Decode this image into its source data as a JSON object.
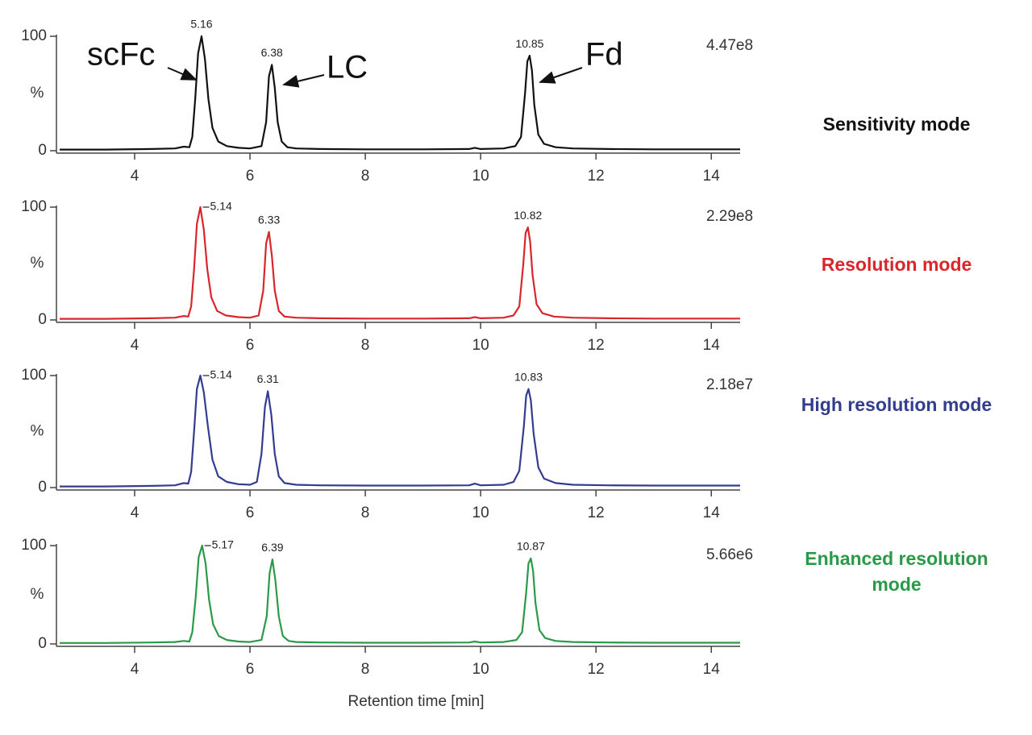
{
  "chart_data": [
    {
      "type": "line",
      "series": [
        {
          "name": "Sensitivity mode",
          "color": "#111111",
          "values": [
            1,
            1,
            1.5,
            2,
            3.5,
            3,
            12,
            45,
            85,
            100,
            80,
            45,
            20,
            8,
            4,
            2.5,
            2,
            4,
            25,
            65,
            75,
            55,
            25,
            8,
            3,
            2,
            1.5,
            1.2,
            1.2,
            1.5,
            2.5,
            1.5,
            2,
            4,
            12,
            50,
            78,
            83,
            70,
            40,
            14,
            6,
            3,
            2,
            1.5,
            1.2,
            1.2
          ]
        }
      ],
      "x": [
        2.7,
        3.5,
        4.3,
        4.7,
        4.85,
        4.95,
        5.0,
        5.05,
        5.1,
        5.16,
        5.22,
        5.28,
        5.35,
        5.45,
        5.6,
        5.8,
        6.0,
        6.2,
        6.28,
        6.33,
        6.38,
        6.43,
        6.48,
        6.55,
        6.65,
        6.8,
        7.2,
        8,
        9,
        9.8,
        9.9,
        10.0,
        10.4,
        10.6,
        10.7,
        10.77,
        10.81,
        10.85,
        10.89,
        10.93,
        11.0,
        11.1,
        11.3,
        11.6,
        12.2,
        13,
        14.5
      ],
      "xlim": [
        2.7,
        14.5
      ],
      "xticks": [
        4,
        6,
        8,
        10,
        12,
        14
      ],
      "ylim": [
        0,
        100
      ],
      "yticks": [
        0,
        100
      ],
      "ylabel": "%",
      "intensity": "4.47e8",
      "peak_labels": [
        {
          "x": 5.16,
          "y": 100
        },
        {
          "x": 6.38,
          "y": 75
        },
        {
          "x": 10.85,
          "y": 83
        }
      ],
      "peak_label_leader": false,
      "annotations": [
        "scFc",
        "LC",
        "Fd"
      ]
    },
    {
      "type": "line",
      "series": [
        {
          "name": "Resolution mode",
          "color": "#d9262c",
          "values": [
            1,
            1,
            1.5,
            2,
            3.5,
            3,
            12,
            45,
            85,
            100,
            80,
            45,
            20,
            8,
            4,
            2.5,
            2,
            4,
            26,
            68,
            78,
            57,
            26,
            8,
            3,
            2,
            1.5,
            1.2,
            1.2,
            1.5,
            2.5,
            1.5,
            2,
            4,
            12,
            50,
            77,
            82,
            69,
            40,
            14,
            6,
            3,
            2,
            1.5,
            1.2,
            1.2
          ]
        }
      ],
      "x": [
        2.7,
        3.5,
        4.3,
        4.7,
        4.85,
        4.93,
        4.98,
        5.03,
        5.08,
        5.14,
        5.2,
        5.26,
        5.33,
        5.43,
        5.58,
        5.8,
        6.0,
        6.15,
        6.23,
        6.28,
        6.33,
        6.38,
        6.43,
        6.5,
        6.6,
        6.8,
        7.2,
        8,
        9,
        9.8,
        9.9,
        10.0,
        10.4,
        10.57,
        10.67,
        10.74,
        10.78,
        10.82,
        10.86,
        10.9,
        10.97,
        11.07,
        11.27,
        11.6,
        12.2,
        13,
        14.5
      ],
      "xlim": [
        2.7,
        14.5
      ],
      "xticks": [
        4,
        6,
        8,
        10,
        12,
        14
      ],
      "ylim": [
        0,
        100
      ],
      "yticks": [
        0,
        100
      ],
      "ylabel": "%",
      "intensity": "2.29e8",
      "peak_labels": [
        {
          "x": 5.14,
          "y": 100
        },
        {
          "x": 6.33,
          "y": 78
        },
        {
          "x": 10.82,
          "y": 82
        }
      ],
      "peak_label_leader": true
    },
    {
      "type": "line",
      "series": [
        {
          "name": "High resolution mode",
          "color": "#333d8f",
          "values": [
            1,
            1,
            1.5,
            2,
            4,
            3.5,
            14,
            50,
            88,
            100,
            85,
            55,
            25,
            10,
            5,
            3,
            2.5,
            5,
            30,
            72,
            86,
            65,
            30,
            10,
            4,
            2.5,
            2,
            1.8,
            1.8,
            2,
            3.5,
            2,
            2.5,
            5,
            15,
            55,
            82,
            88,
            78,
            48,
            18,
            8,
            4,
            2.5,
            2,
            1.8,
            1.8
          ]
        }
      ],
      "x": [
        2.7,
        3.5,
        4.3,
        4.7,
        4.85,
        4.93,
        4.98,
        5.03,
        5.08,
        5.14,
        5.2,
        5.27,
        5.35,
        5.45,
        5.6,
        5.8,
        6.0,
        6.12,
        6.2,
        6.26,
        6.31,
        6.37,
        6.43,
        6.5,
        6.6,
        6.8,
        7.2,
        8,
        9,
        9.8,
        9.9,
        10.0,
        10.4,
        10.57,
        10.67,
        10.75,
        10.79,
        10.83,
        10.87,
        10.92,
        11.0,
        11.1,
        11.3,
        11.6,
        12.2,
        13,
        14.5
      ],
      "xlim": [
        2.7,
        14.5
      ],
      "xticks": [
        4,
        6,
        8,
        10,
        12,
        14
      ],
      "ylim": [
        0,
        100
      ],
      "yticks": [
        0,
        100
      ],
      "ylabel": "%",
      "intensity": "2.18e7",
      "peak_labels": [
        {
          "x": 5.14,
          "y": 100
        },
        {
          "x": 6.31,
          "y": 86
        },
        {
          "x": 10.83,
          "y": 88
        }
      ],
      "peak_label_leader": true
    },
    {
      "type": "line",
      "series": [
        {
          "name": "Enhanced resolution mode",
          "color": "#2a9a48",
          "values": [
            1,
            1,
            1.5,
            2,
            3,
            2.5,
            12,
            48,
            88,
            100,
            82,
            45,
            20,
            8,
            4,
            2.5,
            2,
            4,
            28,
            72,
            86,
            65,
            28,
            8,
            3,
            2,
            1.5,
            1.2,
            1.2,
            1.5,
            2.5,
            1.5,
            2,
            4,
            12,
            52,
            82,
            87,
            74,
            42,
            14,
            6,
            3,
            2,
            1.5,
            1.2,
            1.2
          ]
        }
      ],
      "x": [
        2.7,
        3.5,
        4.3,
        4.7,
        4.85,
        4.95,
        5.0,
        5.06,
        5.11,
        5.17,
        5.23,
        5.29,
        5.36,
        5.46,
        5.6,
        5.8,
        6.0,
        6.2,
        6.29,
        6.34,
        6.39,
        6.44,
        6.5,
        6.57,
        6.67,
        6.8,
        7.2,
        8,
        9,
        9.8,
        9.9,
        10.0,
        10.4,
        10.62,
        10.72,
        10.79,
        10.83,
        10.87,
        10.91,
        10.95,
        11.02,
        11.12,
        11.3,
        11.6,
        12.2,
        13,
        14.5
      ],
      "xlim": [
        2.7,
        14.5
      ],
      "xticks": [
        4,
        6,
        8,
        10,
        12,
        14
      ],
      "ylim": [
        0,
        100
      ],
      "yticks": [
        0,
        100
      ],
      "ylabel": "%",
      "intensity": "5.66e6",
      "peak_labels": [
        {
          "x": 5.17,
          "y": 100
        },
        {
          "x": 6.39,
          "y": 86
        },
        {
          "x": 10.87,
          "y": 87
        }
      ],
      "peak_label_leader": true,
      "xlabel": "Retention time [min]"
    }
  ]
}
